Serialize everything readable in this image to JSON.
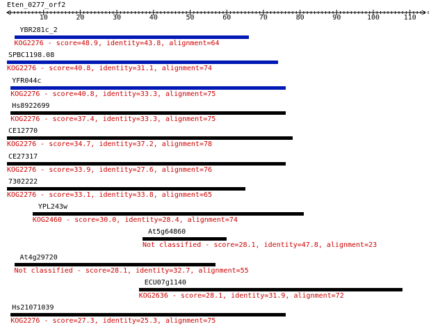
{
  "query": {
    "name": "Eten_0277_orf2",
    "length": 115
  },
  "axis": {
    "ticks": [
      10,
      20,
      30,
      40,
      50,
      60,
      70,
      80,
      90,
      100,
      110
    ]
  },
  "colors": {
    "blue": "#0018b4",
    "black": "#000000",
    "red": "#cc0000"
  },
  "hits": [
    {
      "name": "YBR281c_2",
      "start": 2,
      "end": 66,
      "color": "blue",
      "desc": "KOG2276 - score=48.9, identity=43.8, alignment=64"
    },
    {
      "name": "SPBC1198.08",
      "start": 0,
      "end": 74,
      "color": "blue",
      "desc": "KOG2276 - score=40.8, identity=31.1, alignment=74"
    },
    {
      "name": "YFR044c",
      "start": 1,
      "end": 76,
      "color": "blue",
      "desc": "KOG2276 - score=40.8, identity=33.3, alignment=75"
    },
    {
      "name": "Hs8922699",
      "start": 1,
      "end": 76,
      "color": "black",
      "desc": "KOG2276 - score=37.4, identity=33.3, alignment=75"
    },
    {
      "name": "CE12770",
      "start": 0,
      "end": 78,
      "color": "black",
      "desc": "KOG2276 - score=34.7, identity=37.2, alignment=78"
    },
    {
      "name": "CE27317",
      "start": 0,
      "end": 76,
      "color": "black",
      "desc": "KOG2276 - score=33.9, identity=27.6, alignment=76"
    },
    {
      "name": "7302222",
      "start": 0,
      "end": 65,
      "color": "black",
      "desc": "KOG2276 - score=33.1, identity=33.8, alignment=65"
    },
    {
      "name": "YPL243w",
      "start": 7,
      "end": 81,
      "color": "black",
      "desc": "KOG2460 - score=30.0, identity=28.4, alignment=74"
    },
    {
      "name": "At5g64860",
      "start": 37,
      "end": 60,
      "color": "black",
      "desc": "Not classified - score=28.1, identity=47.8, alignment=23"
    },
    {
      "name": "At4g29720",
      "start": 2,
      "end": 57,
      "color": "black",
      "desc": "Not classified - score=28.1, identity=32.7, alignment=55"
    },
    {
      "name": "ECU07g1140",
      "start": 36,
      "end": 108,
      "color": "black",
      "desc": "KOG2636 - score=28.1, identity=31.9, alignment=72"
    },
    {
      "name": "Hs21071039",
      "start": 1,
      "end": 76,
      "color": "black",
      "desc": "KOG2276 - score=27.3, identity=25.3, alignment=75"
    }
  ]
}
